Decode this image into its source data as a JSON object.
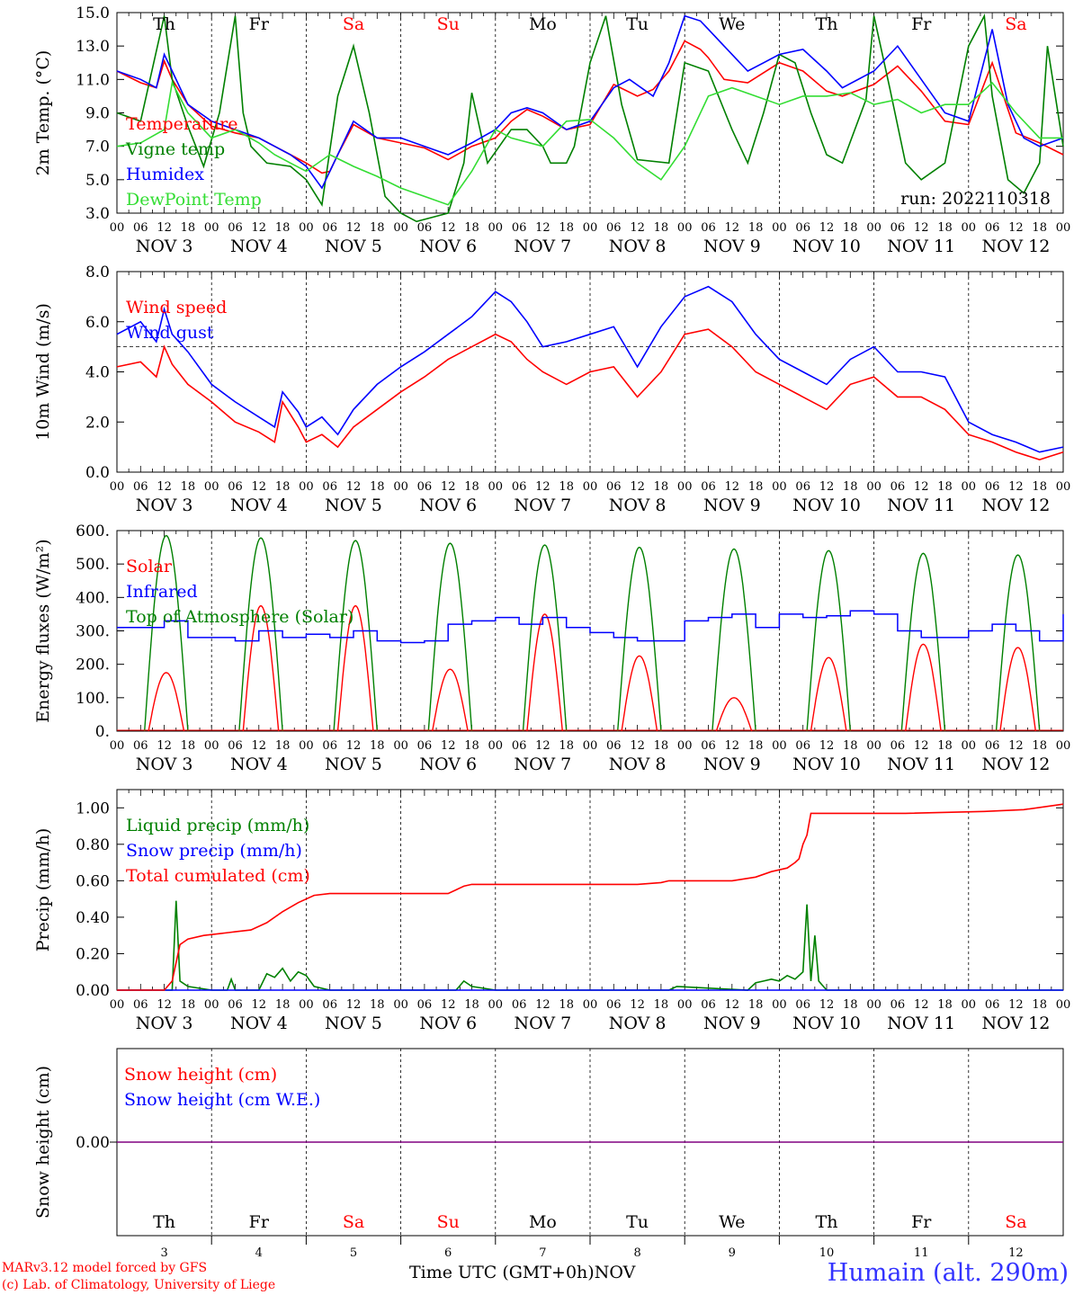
{
  "footer": {
    "model": "MARv3.12 model forced by GFS",
    "credit": "(c) Lab. of Climatology, University of Liege",
    "time_label": "Time UTC (GMT+0h)",
    "month": "NOV",
    "station": "Humain (alt. 290m)"
  },
  "colors": {
    "red": "#ff0000",
    "green": "#008000",
    "blue": "#0000ff",
    "lightgreen": "#33dd33",
    "weekend": "#ff0000",
    "weekday": "#000000",
    "purple": "#800080"
  },
  "days": [
    "Th",
    "Fr",
    "Sa",
    "Su",
    "Mo",
    "Tu",
    "We",
    "Th",
    "Fr",
    "Sa"
  ],
  "weekend": [
    false,
    false,
    true,
    true,
    false,
    false,
    false,
    false,
    false,
    true
  ],
  "date_labels": [
    "NOV  3",
    "NOV  4",
    "NOV  5",
    "NOV  6",
    "NOV  7",
    "NOV  8",
    "NOV  9",
    "NOV 10",
    "NOV 11",
    "NOV 12"
  ],
  "bottom_day_numbers": [
    "3",
    "4",
    "5",
    "6",
    "7",
    "8",
    "9",
    "10",
    "11",
    "12"
  ],
  "hour_labels": [
    "00",
    "06",
    "12",
    "18"
  ],
  "chart_data": [
    {
      "type": "line",
      "ylabel": "2m Temp. (°C)",
      "ylim": [
        3.0,
        15.0
      ],
      "yticks": [
        3.0,
        5.0,
        7.0,
        9.0,
        11.0,
        13.0,
        15.0
      ],
      "ytick_labels": [
        "3.0",
        "5.0",
        "7.0",
        "9.0",
        "11.0",
        "13.0",
        "15.0"
      ],
      "annotation": "run: 2022110318",
      "x_unit": "hours since NOV 3 00 UTC",
      "series": [
        {
          "name": "Temperature",
          "color": "red",
          "x": [
            0,
            6,
            10,
            12,
            14,
            18,
            24,
            30,
            36,
            40,
            44,
            48,
            52,
            54,
            56,
            60,
            66,
            72,
            78,
            84,
            90,
            96,
            100,
            104,
            108,
            114,
            120,
            126,
            132,
            136,
            140,
            144,
            148,
            150,
            154,
            160,
            168,
            174,
            180,
            184,
            192,
            198,
            204,
            210,
            216,
            222,
            228,
            234,
            240
          ],
          "y": [
            11.5,
            10.8,
            10.5,
            12.1,
            11.0,
            9.5,
            8.2,
            7.8,
            7.5,
            7.0,
            6.5,
            6.0,
            5.4,
            5.5,
            6.5,
            8.3,
            7.5,
            7.2,
            6.9,
            6.2,
            7.0,
            7.5,
            8.5,
            9.2,
            8.8,
            8.0,
            8.3,
            10.7,
            10.0,
            10.4,
            11.5,
            13.3,
            12.8,
            12.3,
            11.0,
            10.8,
            12.0,
            11.5,
            10.3,
            10.0,
            10.7,
            11.8,
            10.3,
            8.5,
            8.3,
            12.0,
            7.8,
            7.2,
            6.5
          ]
        },
        {
          "name": "Vigne temp",
          "color": "green",
          "x": [
            0,
            6,
            12,
            14,
            18,
            22,
            26,
            30,
            32,
            34,
            38,
            44,
            48,
            52,
            56,
            60,
            64,
            68,
            72,
            76,
            84,
            88,
            90,
            94,
            100,
            104,
            108,
            110,
            114,
            116,
            120,
            124,
            128,
            132,
            140,
            144,
            150,
            156,
            160,
            164,
            168,
            172,
            176,
            180,
            184,
            190,
            192,
            196,
            200,
            204,
            210,
            216,
            220,
            222,
            226,
            230,
            234,
            236,
            240
          ],
          "y": [
            9.0,
            8.5,
            14.8,
            11.0,
            8.2,
            5.8,
            9.0,
            14.8,
            9.0,
            7.0,
            6.0,
            5.8,
            5.0,
            3.5,
            10.0,
            13.0,
            9.0,
            4.0,
            3.0,
            2.5,
            3.0,
            6.0,
            10.2,
            6.0,
            8.0,
            8.0,
            7.0,
            6.0,
            6.0,
            7.0,
            12.0,
            14.8,
            9.5,
            6.2,
            6.0,
            12.0,
            11.5,
            8.0,
            6.0,
            9.0,
            12.5,
            12.0,
            9.0,
            6.5,
            6.0,
            9.8,
            14.8,
            10.5,
            6.0,
            5.0,
            6.0,
            13.0,
            14.8,
            10.0,
            5.0,
            4.2,
            6.0,
            13.0,
            7.0
          ]
        },
        {
          "name": "Humidex",
          "color": "blue",
          "x": [
            0,
            6,
            10,
            12,
            14,
            18,
            24,
            30,
            36,
            40,
            44,
            48,
            52,
            56,
            60,
            66,
            72,
            78,
            84,
            90,
            96,
            100,
            104,
            108,
            114,
            120,
            126,
            130,
            136,
            140,
            144,
            148,
            150,
            154,
            160,
            164,
            168,
            174,
            180,
            184,
            192,
            198,
            204,
            210,
            216,
            222,
            226,
            230,
            234,
            240
          ],
          "y": [
            11.5,
            11.0,
            10.5,
            12.5,
            11.5,
            9.5,
            8.5,
            8.0,
            7.5,
            7.0,
            6.5,
            5.8,
            4.5,
            6.5,
            8.5,
            7.5,
            7.5,
            7.0,
            6.5,
            7.2,
            8.0,
            9.0,
            9.3,
            9.0,
            8.0,
            8.5,
            10.5,
            11.0,
            10.0,
            12.0,
            14.8,
            14.5,
            14.0,
            13.0,
            11.5,
            12.0,
            12.5,
            12.8,
            11.5,
            10.5,
            11.5,
            13.0,
            11.0,
            9.0,
            8.5,
            14.0,
            9.5,
            7.5,
            7.0,
            7.5
          ]
        },
        {
          "name": "DewPoint Temp",
          "color": "lightgreen",
          "x": [
            0,
            6,
            12,
            14,
            18,
            24,
            30,
            36,
            40,
            44,
            48,
            54,
            60,
            66,
            72,
            78,
            84,
            90,
            96,
            100,
            108,
            114,
            120,
            126,
            132,
            138,
            144,
            150,
            156,
            162,
            168,
            174,
            180,
            186,
            192,
            198,
            204,
            210,
            216,
            222,
            228,
            234,
            240
          ],
          "y": [
            7.0,
            7.2,
            8.0,
            10.8,
            9.0,
            7.5,
            8.0,
            7.2,
            6.5,
            6.0,
            5.5,
            6.5,
            5.8,
            5.2,
            4.5,
            4.0,
            3.5,
            5.5,
            8.0,
            7.5,
            7.0,
            8.5,
            8.6,
            7.5,
            6.0,
            5.0,
            7.0,
            10.0,
            10.5,
            10.0,
            9.5,
            10.0,
            10.0,
            10.2,
            9.5,
            9.8,
            9.0,
            9.5,
            9.5,
            10.8,
            9.0,
            7.5,
            7.5
          ]
        }
      ]
    },
    {
      "type": "line",
      "ylabel": "10m Wind (m/s)",
      "ylim": [
        0.0,
        8.0
      ],
      "yticks": [
        0.0,
        2.0,
        4.0,
        6.0,
        8.0
      ],
      "ytick_labels": [
        "0.0",
        "2.0",
        "4.0",
        "6.0",
        "8.0"
      ],
      "reference_line": 5.0,
      "x_unit": "hours since NOV 3 00 UTC",
      "series": [
        {
          "name": "Wind speed",
          "color": "red",
          "x": [
            0,
            6,
            10,
            12,
            14,
            18,
            24,
            30,
            36,
            40,
            42,
            46,
            48,
            52,
            56,
            60,
            66,
            72,
            78,
            84,
            90,
            96,
            100,
            104,
            108,
            114,
            120,
            126,
            132,
            138,
            144,
            150,
            156,
            162,
            168,
            174,
            180,
            186,
            192,
            198,
            204,
            210,
            216,
            222,
            228,
            234,
            240
          ],
          "y": [
            4.2,
            4.4,
            3.8,
            5.0,
            4.3,
            3.5,
            2.8,
            2.0,
            1.6,
            1.2,
            2.8,
            1.8,
            1.2,
            1.5,
            1.0,
            1.8,
            2.5,
            3.2,
            3.8,
            4.5,
            5.0,
            5.5,
            5.2,
            4.5,
            4.0,
            3.5,
            4.0,
            4.2,
            3.0,
            4.0,
            5.5,
            5.7,
            5.0,
            4.0,
            3.5,
            3.0,
            2.5,
            3.5,
            3.8,
            3.0,
            3.0,
            2.5,
            1.5,
            1.2,
            0.8,
            0.5,
            0.8
          ]
        },
        {
          "name": "Wind gust",
          "color": "blue",
          "x": [
            0,
            6,
            10,
            12,
            14,
            18,
            24,
            30,
            36,
            40,
            42,
            46,
            48,
            52,
            56,
            60,
            66,
            72,
            78,
            84,
            90,
            96,
            100,
            104,
            108,
            114,
            120,
            126,
            132,
            138,
            144,
            150,
            156,
            162,
            168,
            174,
            180,
            186,
            192,
            198,
            204,
            210,
            216,
            222,
            228,
            234,
            240
          ],
          "y": [
            5.5,
            6.0,
            5.2,
            6.5,
            5.5,
            4.8,
            3.5,
            2.8,
            2.2,
            1.8,
            3.2,
            2.4,
            1.8,
            2.2,
            1.5,
            2.5,
            3.5,
            4.2,
            4.8,
            5.5,
            6.2,
            7.2,
            6.8,
            6.0,
            5.0,
            5.2,
            5.5,
            5.8,
            4.2,
            5.8,
            7.0,
            7.4,
            6.8,
            5.5,
            4.5,
            4.0,
            3.5,
            4.5,
            5.0,
            4.0,
            4.0,
            3.8,
            2.0,
            1.5,
            1.2,
            0.8,
            1.0
          ]
        }
      ]
    },
    {
      "type": "line",
      "ylabel": "Energy fluxes (W/m²)",
      "ylim": [
        0,
        600
      ],
      "yticks": [
        0,
        100,
        200,
        300,
        400,
        500,
        600
      ],
      "ytick_labels": [
        "0.",
        "100.",
        "200.",
        "300.",
        "400.",
        "500.",
        "600."
      ],
      "x_unit": "hours since NOV 3 00 UTC",
      "series": [
        {
          "name": "Solar",
          "color": "red",
          "peaks": [
            175,
            375,
            375,
            185,
            350,
            225,
            100,
            220,
            260,
            250
          ]
        },
        {
          "name": "Infrared",
          "color": "blue",
          "x": [
            0,
            6,
            12,
            18,
            24,
            30,
            36,
            42,
            48,
            54,
            60,
            66,
            72,
            78,
            84,
            90,
            96,
            102,
            108,
            114,
            120,
            126,
            132,
            138,
            144,
            150,
            156,
            162,
            168,
            174,
            180,
            186,
            192,
            198,
            204,
            210,
            216,
            222,
            228,
            234,
            240
          ],
          "y": [
            310,
            310,
            330,
            280,
            280,
            270,
            300,
            280,
            290,
            280,
            300,
            270,
            265,
            270,
            320,
            330,
            340,
            320,
            340,
            310,
            295,
            280,
            270,
            270,
            330,
            340,
            350,
            310,
            350,
            340,
            345,
            360,
            350,
            300,
            280,
            280,
            300,
            320,
            300,
            270,
            350
          ]
        },
        {
          "name": "Top of Atmosphere (Solar)",
          "color": "green",
          "peaks": [
            585,
            578,
            570,
            562,
            557,
            550,
            545,
            540,
            532,
            527
          ]
        }
      ]
    },
    {
      "type": "line",
      "ylabel": "Precip (mm/h)",
      "ylim": [
        0.0,
        1.1
      ],
      "yticks": [
        0.0,
        0.2,
        0.4,
        0.6,
        0.8,
        1.0
      ],
      "ytick_labels": [
        "0.00",
        "0.20",
        "0.40",
        "0.60",
        "0.80",
        "1.00"
      ],
      "x_unit": "hours since NOV 3 00 UTC",
      "series": [
        {
          "name": "Liquid precip (mm/h)",
          "color": "green",
          "x": [
            0,
            12,
            14,
            15,
            16,
            18,
            24,
            28,
            29,
            30,
            36,
            38,
            40,
            42,
            44,
            46,
            48,
            50,
            54,
            86,
            88,
            90,
            96,
            140,
            142,
            160,
            162,
            164,
            166,
            168,
            170,
            172,
            174,
            175,
            176,
            177,
            178,
            180,
            240
          ],
          "y": [
            0,
            0,
            0,
            0.49,
            0.05,
            0.02,
            0,
            0,
            0.06,
            0,
            0,
            0.09,
            0.07,
            0.12,
            0.05,
            0.1,
            0.08,
            0.02,
            0,
            0,
            0.05,
            0.02,
            0,
            0,
            0.02,
            0,
            0.04,
            0.05,
            0.06,
            0.05,
            0.08,
            0.06,
            0.1,
            0.47,
            0.05,
            0.3,
            0.05,
            0,
            0
          ]
        },
        {
          "name": "Snow precip (mm/h)",
          "color": "blue",
          "x": [
            0,
            240
          ],
          "y": [
            0,
            0
          ]
        },
        {
          "name": "Total cumulated (cm)",
          "color": "red",
          "x": [
            0,
            12,
            14,
            16,
            18,
            22,
            26,
            30,
            34,
            38,
            42,
            46,
            50,
            54,
            60,
            66,
            72,
            78,
            84,
            86,
            88,
            90,
            96,
            120,
            132,
            138,
            140,
            144,
            150,
            156,
            162,
            166,
            170,
            172,
            173,
            174,
            175,
            176,
            180,
            200,
            220,
            230,
            240
          ],
          "y": [
            0,
            0,
            0.05,
            0.25,
            0.28,
            0.3,
            0.31,
            0.32,
            0.33,
            0.37,
            0.43,
            0.48,
            0.52,
            0.53,
            0.53,
            0.53,
            0.53,
            0.53,
            0.53,
            0.55,
            0.57,
            0.58,
            0.58,
            0.58,
            0.58,
            0.59,
            0.6,
            0.6,
            0.6,
            0.6,
            0.62,
            0.65,
            0.67,
            0.7,
            0.72,
            0.8,
            0.85,
            0.97,
            0.97,
            0.97,
            0.98,
            0.99,
            1.02
          ]
        }
      ]
    },
    {
      "type": "line",
      "ylabel": "Snow height (cm)",
      "ytick_labels": [
        "0.00"
      ],
      "x_unit": "hours since NOV 3 00 UTC",
      "series": [
        {
          "name": "Snow height (cm)",
          "color": "red",
          "x": [
            0,
            240
          ],
          "y": [
            0,
            0
          ]
        },
        {
          "name": "Snow height (cm W.E.)",
          "color": "blue",
          "x": [
            0,
            240
          ],
          "y": [
            0,
            0
          ]
        }
      ]
    }
  ]
}
